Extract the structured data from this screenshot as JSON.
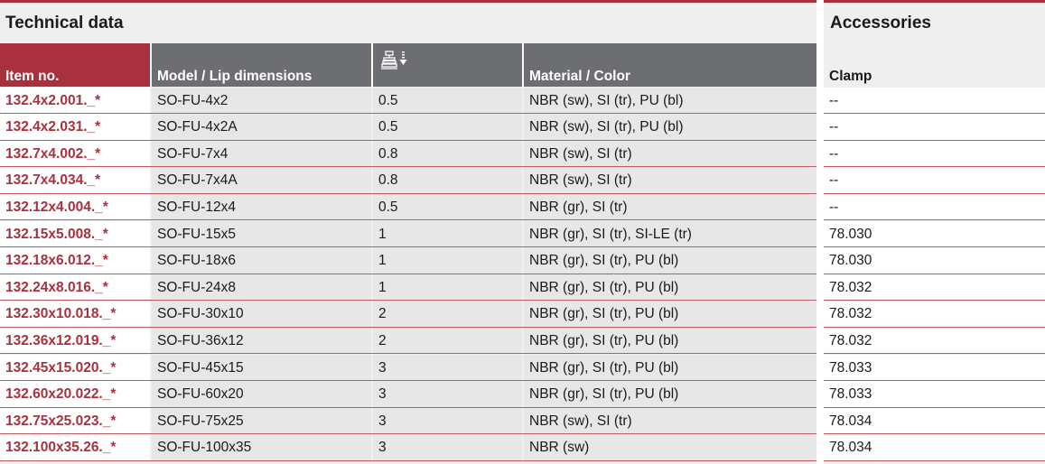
{
  "technical_title": "Technical data",
  "accessories_title": "Accessories",
  "headers": {
    "item_no": "Item no.",
    "model": "Model / Lip dimensions",
    "stroke_icon": "suction-cup-stroke-icon",
    "material": "Material / Color",
    "clamp": "Clamp"
  },
  "colors": {
    "accent": "#a8313d",
    "header_gray": "#6d6e71",
    "panel": "#efeff0"
  },
  "rows": [
    {
      "item": "132.4x2.001._*",
      "model": "SO-FU-4x2",
      "size": "0.5",
      "material": "NBR (sw), SI (tr), PU (bl)",
      "clamp": "--"
    },
    {
      "item": "132.4x2.031._*",
      "model": "SO-FU-4x2A",
      "size": "0.5",
      "material": "NBR (sw), SI (tr), PU (bl)",
      "clamp": "--"
    },
    {
      "item": "132.7x4.002._*",
      "model": "SO-FU-7x4",
      "size": "0.8",
      "material": "NBR (sw), SI (tr)",
      "clamp": "--"
    },
    {
      "item": "132.7x4.034._*",
      "model": "SO-FU-7x4A",
      "size": "0.8",
      "material": "NBR (sw), SI (tr)",
      "clamp": "--"
    },
    {
      "item": "132.12x4.004._*",
      "model": "SO-FU-12x4",
      "size": "0.5",
      "material": "NBR (gr), SI (tr)",
      "clamp": "--"
    },
    {
      "item": "132.15x5.008._*",
      "model": "SO-FU-15x5",
      "size": "1",
      "material": "NBR (gr), SI (tr), SI-LE (tr)",
      "clamp": "78.030"
    },
    {
      "item": "132.18x6.012._*",
      "model": "SO-FU-18x6",
      "size": "1",
      "material": "NBR (gr), SI (tr), PU (bl)",
      "clamp": "78.030"
    },
    {
      "item": "132.24x8.016._*",
      "model": "SO-FU-24x8",
      "size": "1",
      "material": "NBR (gr), SI (tr), PU (bl)",
      "clamp": "78.032"
    },
    {
      "item": "132.30x10.018._*",
      "model": "SO-FU-30x10",
      "size": "2",
      "material": "NBR (gr), SI (tr), PU (bl)",
      "clamp": "78.032"
    },
    {
      "item": "132.36x12.019._*",
      "model": "SO-FU-36x12",
      "size": "2",
      "material": "NBR (gr), SI (tr), PU (bl)",
      "clamp": "78.032"
    },
    {
      "item": "132.45x15.020._*",
      "model": "SO-FU-45x15",
      "size": "3",
      "material": "NBR (gr), SI (tr), PU (bl)",
      "clamp": "78.033"
    },
    {
      "item": "132.60x20.022._*",
      "model": "SO-FU-60x20",
      "size": "3",
      "material": "NBR (gr), SI (tr), PU (bl)",
      "clamp": "78.033"
    },
    {
      "item": "132.75x25.023._*",
      "model": "SO-FU-75x25",
      "size": "3",
      "material": "NBR (sw), SI (tr)",
      "clamp": "78.034"
    },
    {
      "item": "132.100x35.26._*",
      "model": "SO-FU-100x35",
      "size": "3",
      "material": "NBR (sw)",
      "clamp": "78.034"
    }
  ]
}
